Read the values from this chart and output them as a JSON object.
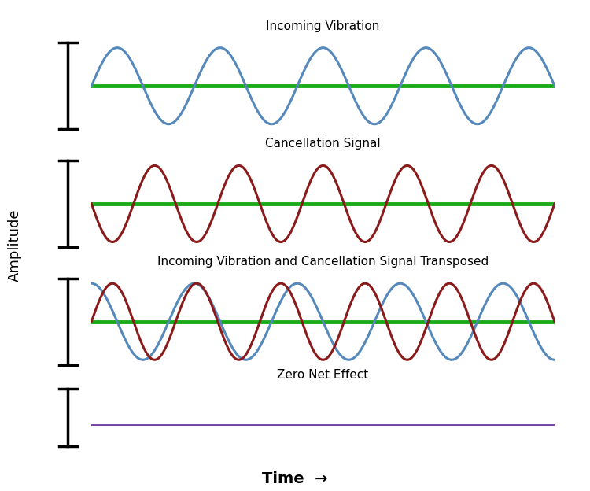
{
  "title1": "Incoming Vibration",
  "title2": "Cancellation Signal",
  "title3": "Incoming Vibration and Cancellation Signal Transposed",
  "title4": "Zero Net Effect",
  "xlabel": "Time",
  "ylabel": "Amplitude",
  "background_color": "#ffffff",
  "wave1_color": "#5588bb",
  "wave2_color": "#8b1a1a",
  "green_color": "#1aaa1a",
  "purple_color": "#7040a0",
  "wave1_cycles": 4.5,
  "wave2_cycles": 5.5,
  "title_fontsize": 11,
  "label_fontsize": 13,
  "lw_wave": 2.2,
  "lw_green": 3.5,
  "lw_purple": 2.0,
  "lw_bracket": 2.5
}
